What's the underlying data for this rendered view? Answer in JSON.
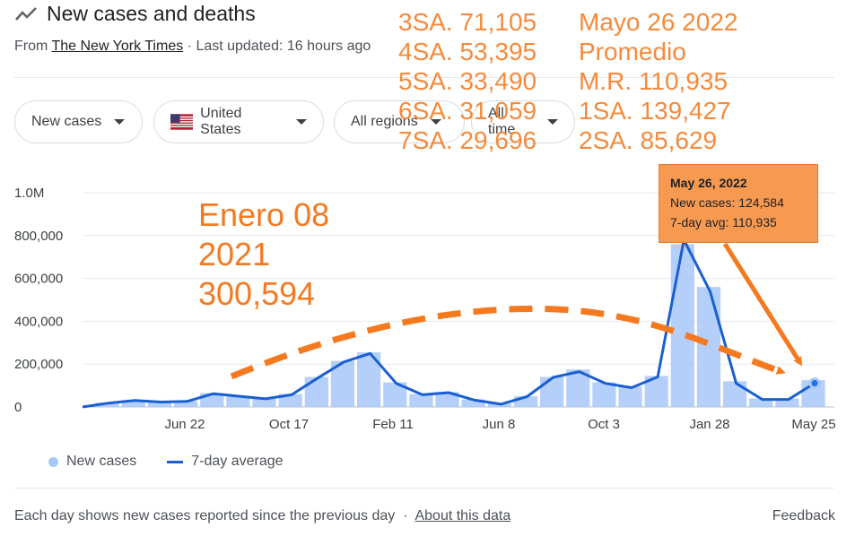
{
  "header": {
    "icon": "trending-line-icon",
    "title": "New cases and deaths",
    "source_prefix": "From ",
    "source": "The New York Times",
    "updated": " · Last updated: 16 hours ago"
  },
  "filters": [
    {
      "label": "New cases"
    },
    {
      "label": "United States",
      "icon": "us-flag-icon"
    },
    {
      "label": "All regions"
    },
    {
      "label": "All time"
    }
  ],
  "annotations": {
    "weekly_stats": [
      "3SA. 71,105",
      "4SA. 53,395",
      "5SA. 33,490",
      "6SA. 31,059",
      "7SA. 29,696"
    ],
    "summary": [
      "Mayo 26 2022",
      "Promedio",
      "M.R. 110,935",
      "1SA. 139,427",
      "2SA. 85,629"
    ],
    "peak_note": [
      "Enero 08",
      "2021",
      "300,594"
    ],
    "color": "#f4791f"
  },
  "tooltip": {
    "date": "May 26, 2022",
    "new_cases": "New cases: 124,584",
    "avg": "7-day avg: 110,935"
  },
  "chart_data": {
    "type": "bar",
    "title": "",
    "xlabel": "",
    "ylabel": "",
    "ylim": [
      0,
      1000000
    ],
    "y_ticks": [
      "0",
      "200,000",
      "400,000",
      "600,000",
      "800,000",
      "1.0M"
    ],
    "x_ticks": [
      "Jun 22",
      "Oct 17",
      "Feb 11",
      "Jun 8",
      "Oct 3",
      "Jan 28",
      "May 25"
    ],
    "grid": true,
    "legend": "bottom-left",
    "series": [
      {
        "name": "New cases",
        "color": "#a8c7fa",
        "x": [
          "Jan 21 2020",
          "Mar 2020",
          "Apr 2020",
          "May 2020",
          "Jun 22 2020",
          "Jul 2020",
          "Aug 2020",
          "Sep 2020",
          "Oct 17 2020",
          "Nov 2020",
          "Dec 2020",
          "Jan 2021",
          "Feb 11 2021",
          "Mar 2021",
          "Apr 2021",
          "May 2021",
          "Jun 8 2021",
          "Jul 2021",
          "Aug 2021",
          "Sep 2021",
          "Oct 3 2021",
          "Nov 2021",
          "Dec 2021",
          "Jan 2022",
          "Jan 28 2022",
          "Feb 2022",
          "Mar 2022",
          "Apr 2022",
          "May 25 2022"
        ],
        "values": [
          0,
          20000,
          32000,
          25000,
          28000,
          65000,
          52000,
          40000,
          60000,
          140000,
          215000,
          255000,
          115000,
          60000,
          70000,
          35000,
          15000,
          50000,
          140000,
          175000,
          115000,
          95000,
          145000,
          760000,
          560000,
          120000,
          40000,
          40000,
          125000
        ]
      },
      {
        "name": "7-day average",
        "color": "#1a5fd0",
        "x": [
          "Jan 21 2020",
          "Mar 2020",
          "Apr 2020",
          "May 2020",
          "Jun 22 2020",
          "Jul 2020",
          "Aug 2020",
          "Sep 2020",
          "Oct 17 2020",
          "Nov 2020",
          "Dec 2020",
          "Jan 2021",
          "Feb 11 2021",
          "Mar 2021",
          "Apr 2021",
          "May 2021",
          "Jun 8 2021",
          "Jul 2021",
          "Aug 2021",
          "Sep 2021",
          "Oct 3 2021",
          "Nov 2021",
          "Dec 2021",
          "Jan 2022",
          "Jan 28 2022",
          "Feb 2022",
          "Mar 2022",
          "Apr 2022",
          "May 25 2022"
        ],
        "values": [
          0,
          18000,
          30000,
          23000,
          26000,
          62000,
          50000,
          38000,
          57000,
          135000,
          210000,
          250000,
          110000,
          57000,
          67000,
          32000,
          13000,
          48000,
          138000,
          165000,
          110000,
          90000,
          140000,
          780000,
          540000,
          110000,
          35000,
          35000,
          110935
        ]
      }
    ]
  }
}
